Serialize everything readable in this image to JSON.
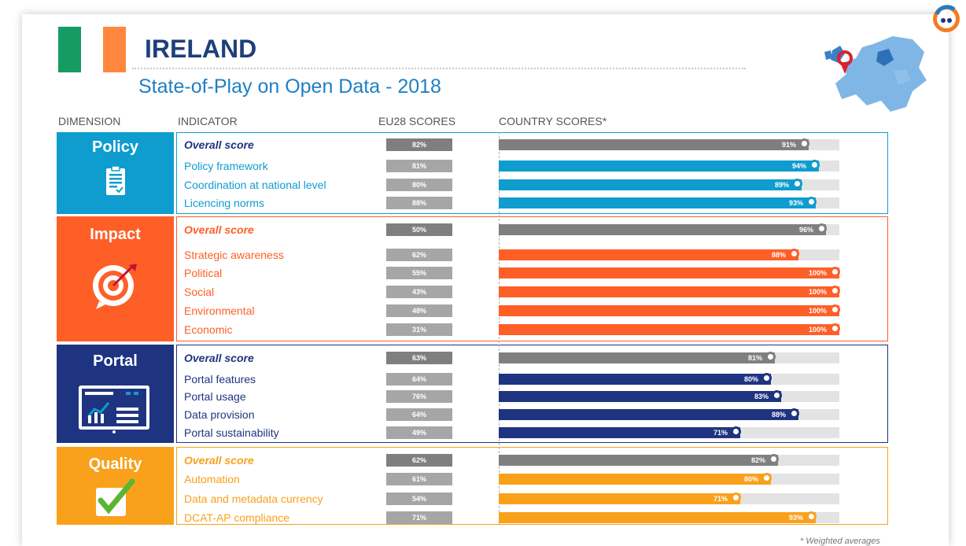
{
  "title": "IRELAND",
  "subtitle": "State-of-Play on Open Data - 2018",
  "flag_colors": [
    "#169b62",
    "#ffffff",
    "#ff883e"
  ],
  "headers": {
    "dimension": "DIMENSION",
    "indicator": "INDICATOR",
    "eu28": "EU28 SCORES",
    "country": "COUNTRY SCORES*"
  },
  "footnote": "* Weighted averages",
  "colors": {
    "policy": "#0f9ccf",
    "impact": "#fe5f27",
    "portal": "#1f3480",
    "quality": "#f9a11b",
    "overall": "#7f7f7f",
    "eu_bar": "#a6a6a6",
    "track": "#e3e3e3"
  },
  "chart_data": {
    "type": "bar",
    "title": "State-of-Play on Open Data - 2018",
    "series": [
      {
        "name": "EU28 SCORES"
      },
      {
        "name": "COUNTRY SCORES*"
      }
    ],
    "ylim": [
      0,
      100
    ],
    "dimensions": [
      {
        "name": "Policy",
        "icon": "clipboard-icon",
        "color": "#0f9ccf",
        "rows": [
          {
            "indicator": "Overall score",
            "overall": true,
            "eu28": 82,
            "country": 91
          },
          {
            "indicator": "Policy framework",
            "eu28": 81,
            "country": 94
          },
          {
            "indicator": "Coordination at national level",
            "eu28": 80,
            "country": 89
          },
          {
            "indicator": "Licencing norms",
            "eu28": 88,
            "country": 93
          }
        ]
      },
      {
        "name": "Impact",
        "icon": "target-icon",
        "color": "#fe5f27",
        "rows": [
          {
            "indicator": "Overall score",
            "overall": true,
            "eu28": 50,
            "country": 96
          },
          {
            "indicator": "Strategic awareness",
            "eu28": 62,
            "country": 88
          },
          {
            "indicator": "Political",
            "eu28": 55,
            "country": 100
          },
          {
            "indicator": "Social",
            "eu28": 43,
            "country": 100
          },
          {
            "indicator": "Environmental",
            "eu28": 48,
            "country": 100
          },
          {
            "indicator": "Economic",
            "eu28": 31,
            "country": 100
          }
        ]
      },
      {
        "name": "Portal",
        "icon": "monitor-chart-icon",
        "color": "#1f3480",
        "rows": [
          {
            "indicator": "Overall score",
            "overall": true,
            "eu28": 63,
            "country": 81
          },
          {
            "indicator": "Portal features",
            "eu28": 64,
            "country": 80
          },
          {
            "indicator": "Portal usage",
            "eu28": 76,
            "country": 83
          },
          {
            "indicator": "Data provision",
            "eu28": 64,
            "country": 88
          },
          {
            "indicator": "Portal sustainability",
            "eu28": 49,
            "country": 71
          }
        ]
      },
      {
        "name": "Quality",
        "icon": "checkmark-icon",
        "color": "#f9a11b",
        "rows": [
          {
            "indicator": "Overall score",
            "overall": true,
            "eu28": 62,
            "country": 82
          },
          {
            "indicator": "Automation",
            "eu28": 61,
            "country": 80
          },
          {
            "indicator": "Data and metadata currency",
            "eu28": 54,
            "country": 71
          },
          {
            "indicator": "DCAT-AP compliance",
            "eu28": 71,
            "country": 93
          }
        ]
      }
    ]
  }
}
